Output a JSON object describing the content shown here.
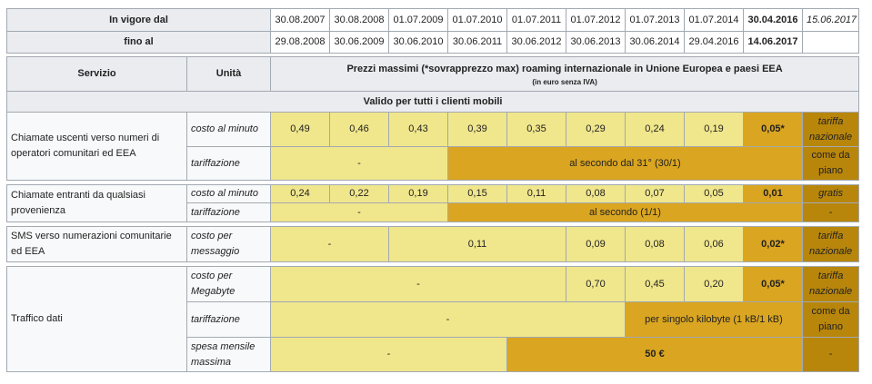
{
  "top": {
    "in_vigore_label": "In vigore dal",
    "fino_label": "fino al",
    "from_dates": [
      "30.08.2007",
      "30.08.2008",
      "01.07.2009",
      "01.07.2010",
      "01.07.2011",
      "01.07.2012",
      "01.07.2013",
      "01.07.2014",
      "30.04.2016",
      "15.06.2017"
    ],
    "to_dates": [
      "29.08.2008",
      "30.06.2009",
      "30.06.2010",
      "30.06.2011",
      "30.06.2012",
      "30.06.2013",
      "30.06.2014",
      "29.04.2016",
      "14.06.2017"
    ]
  },
  "header": {
    "servizio": "Servizio",
    "unita": "Unità",
    "title": "Prezzi massimi (*sovrapprezzo max) roaming internazionale in Unione Europea e paesi EEA",
    "subtitle": "(in euro senza IVA)",
    "valido": "Valido per tutti i clienti mobili"
  },
  "rows": {
    "calls_out": {
      "service": "Chiamate uscenti verso numeri di operatori comunitari ed EEA",
      "unit1": "costo al minuto",
      "prices": [
        "0,49",
        "0,46",
        "0,43",
        "0,39",
        "0,35",
        "0,29",
        "0,24",
        "0,19",
        "0,05*"
      ],
      "last1": "tariffa nazionale",
      "unit2": "tariffazione",
      "tar_dash": "-",
      "tar_text": "al secondo dal 31° (30/1)",
      "last2": "come da piano"
    },
    "calls_in": {
      "service": "Chiamate entranti da qualsiasi provenienza",
      "unit1": "costo al minuto",
      "prices": [
        "0,24",
        "0,22",
        "0,19",
        "0,15",
        "0,11",
        "0,08",
        "0,07",
        "0,05",
        "0,01"
      ],
      "last1": "gratis",
      "unit2": "tariffazione",
      "tar_dash": "-",
      "tar_text": "al secondo (1/1)",
      "last2": "-"
    },
    "sms": {
      "service": "SMS verso numerazioni comunitarie ed EEA",
      "unit1": "costo per messaggio",
      "dash": "-",
      "v_2009_2011": "0,11",
      "prices": [
        "0,09",
        "0,08",
        "0,06",
        "0,02*"
      ],
      "last1": "tariffa nazionale"
    },
    "data": {
      "service": "Traffico dati",
      "unit1": "costo per Megabyte",
      "dash1": "-",
      "prices": [
        "0,70",
        "0,45",
        "0,20",
        "0,05*"
      ],
      "last1": "tariffa nazionale",
      "unit2": "tariffazione",
      "dash2": "-",
      "tar_text": "per singolo kilobyte (1 kB/1 kB)",
      "last2": "come da piano",
      "unit3": "spesa mensile massima",
      "dash3": "-",
      "spesa": "50 €",
      "last3": "-"
    }
  },
  "colors": {
    "yellow": "#f0e68c",
    "orange": "#daa520",
    "brown": "#b8860b",
    "header": "#eaecf0"
  }
}
